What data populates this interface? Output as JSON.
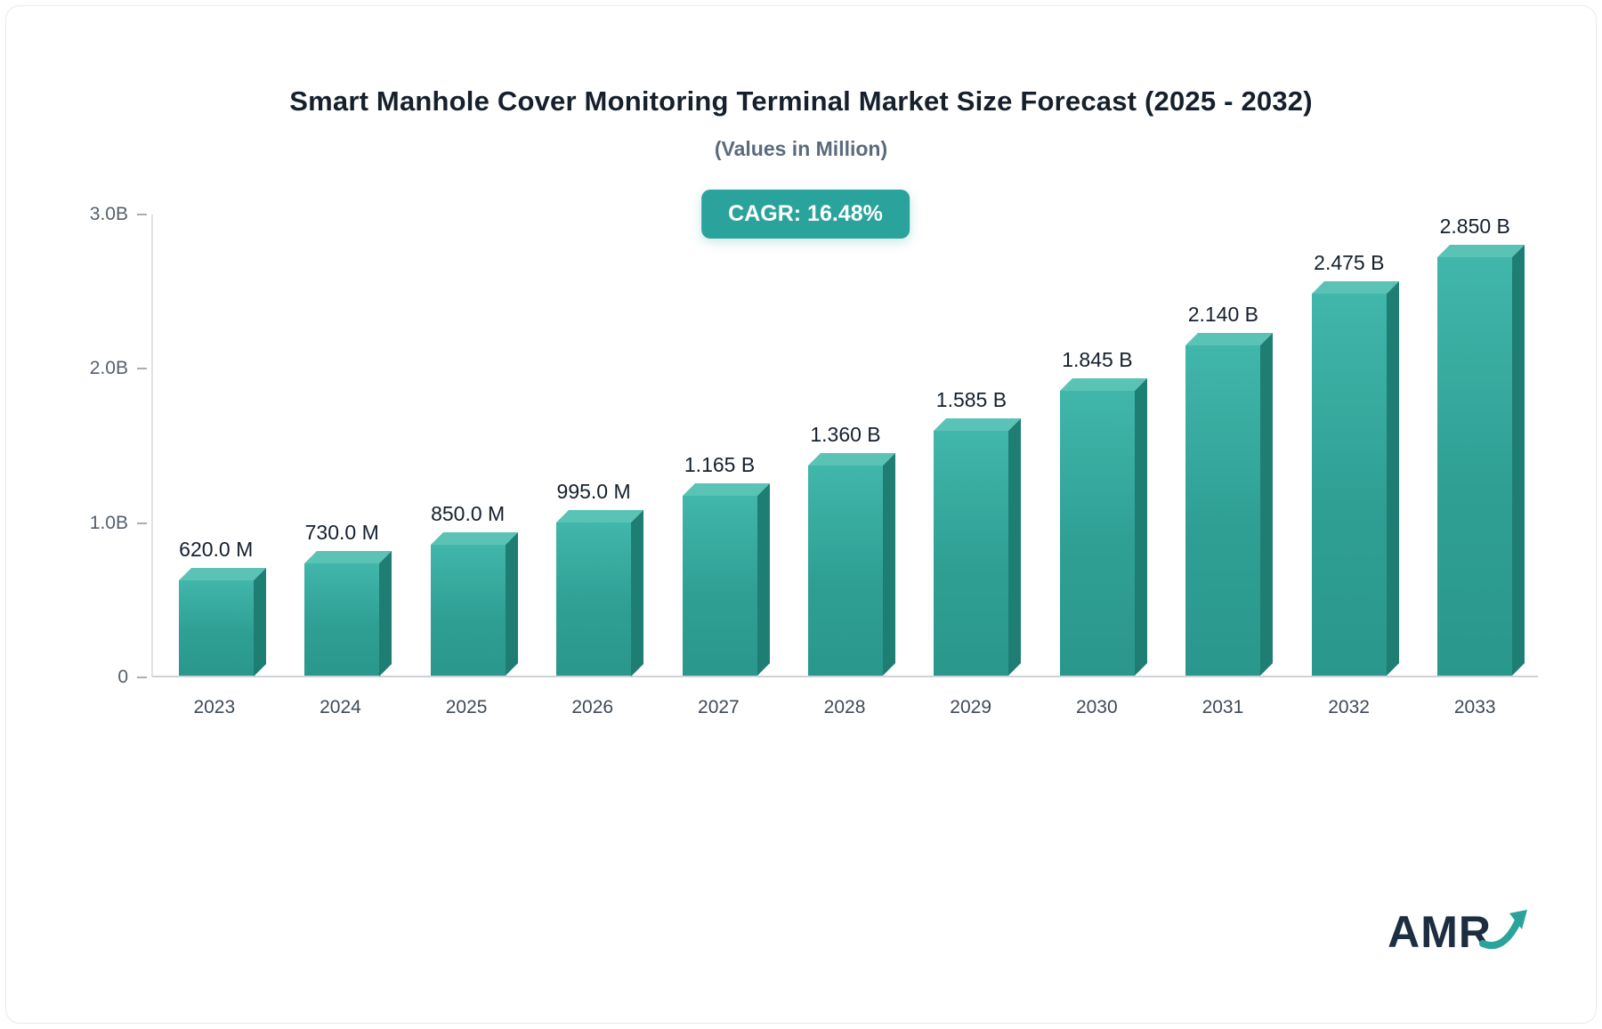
{
  "header": {
    "title": "Smart Manhole Cover Monitoring Terminal Market Size Forecast (2025 - 2032)",
    "subtitle": "(Values in Million)"
  },
  "badge": {
    "label": "CAGR: 16.48%",
    "bg_color": "#29a39b"
  },
  "chart_data": {
    "type": "bar",
    "title": "Smart Manhole Cover Monitoring Terminal Market Size Forecast (2025 - 2032)",
    "subtitle": "(Values in Million)",
    "categories": [
      "2023",
      "2024",
      "2025",
      "2026",
      "2027",
      "2028",
      "2029",
      "2030",
      "2031",
      "2032",
      "2033"
    ],
    "values": [
      620,
      730,
      850,
      995,
      1165,
      1360,
      1585,
      1845,
      2140,
      2475,
      2850
    ],
    "value_labels": [
      "620.0 M",
      "730.0 M",
      "850.0 M",
      "995.0 M",
      "1.165 B",
      "1.360 B",
      "1.585 B",
      "1.845 B",
      "2.140 B",
      "2.475 B",
      "2.850 B"
    ],
    "unit": "Million",
    "xlabel": "",
    "ylabel": "",
    "ylim": [
      0,
      3000
    ],
    "y_ticks": [
      {
        "label": "3.0B",
        "value": 3000
      },
      {
        "label": "2.0B",
        "value": 2000
      },
      {
        "label": "1.0B",
        "value": 1000
      },
      {
        "label": "0",
        "value": 0
      }
    ],
    "grid": false,
    "legend": false,
    "bar_color": "#2f9f94",
    "bar_side_color": "#1f7e74",
    "bar_top_color": "#5ac3b5"
  },
  "logo": {
    "text": "AMR",
    "arrow_icon": "trend-up-arrow",
    "arrow_color": "#29a39b"
  }
}
